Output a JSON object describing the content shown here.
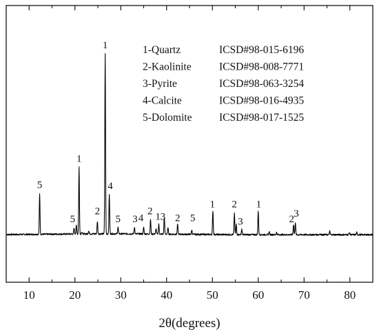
{
  "chart_data": {
    "type": "line",
    "title": "",
    "xlabel": "2θ(degrees)",
    "ylabel": "",
    "xlim": [
      5,
      85
    ],
    "ylim": [
      0,
      170
    ],
    "x_ticks": [
      10,
      20,
      30,
      40,
      50,
      60,
      70,
      80
    ],
    "grid": false,
    "legend_position": "top-right",
    "line_color": "#000000",
    "baseline": 6,
    "series": [
      {
        "peaks": [
          {
            "x": 12.3,
            "y": 42
          },
          {
            "x": 19.8,
            "y": 11
          },
          {
            "x": 20.3,
            "y": 14
          },
          {
            "x": 20.9,
            "y": 65
          },
          {
            "x": 21.5,
            "y": 8
          },
          {
            "x": 23.0,
            "y": 9
          },
          {
            "x": 24.9,
            "y": 17
          },
          {
            "x": 26.6,
            "y": 165
          },
          {
            "x": 27.5,
            "y": 41
          },
          {
            "x": 29.4,
            "y": 12
          },
          {
            "x": 33.0,
            "y": 12
          },
          {
            "x": 35.0,
            "y": 12
          },
          {
            "x": 36.5,
            "y": 19
          },
          {
            "x": 37.7,
            "y": 11
          },
          {
            "x": 38.3,
            "y": 15
          },
          {
            "x": 39.5,
            "y": 21
          },
          {
            "x": 40.3,
            "y": 12
          },
          {
            "x": 42.4,
            "y": 15
          },
          {
            "x": 45.5,
            "y": 10
          },
          {
            "x": 50.1,
            "y": 27
          },
          {
            "x": 54.8,
            "y": 25
          },
          {
            "x": 55.2,
            "y": 15
          },
          {
            "x": 56.4,
            "y": 11
          },
          {
            "x": 60.0,
            "y": 27
          },
          {
            "x": 62.4,
            "y": 9
          },
          {
            "x": 64.0,
            "y": 8
          },
          {
            "x": 67.7,
            "y": 15
          },
          {
            "x": 68.1,
            "y": 17
          },
          {
            "x": 73.5,
            "y": 7
          },
          {
            "x": 75.6,
            "y": 9
          },
          {
            "x": 79.9,
            "y": 8
          },
          {
            "x": 81.5,
            "y": 8
          }
        ]
      }
    ],
    "peak_labels": [
      {
        "text": "5",
        "x": 12.3,
        "y": 47
      },
      {
        "text": "5",
        "x": 19.5,
        "y": 17
      },
      {
        "text": "1",
        "x": 20.9,
        "y": 70
      },
      {
        "text": "2",
        "x": 24.9,
        "y": 24
      },
      {
        "text": "4",
        "x": 27.7,
        "y": 46
      },
      {
        "text": "1",
        "x": 26.6,
        "y": 170
      },
      {
        "text": "5",
        "x": 29.4,
        "y": 17
      },
      {
        "text": "3",
        "x": 33.1,
        "y": 17
      },
      {
        "text": "4",
        "x": 34.4,
        "y": 18
      },
      {
        "text": "2",
        "x": 36.4,
        "y": 24
      },
      {
        "text": "1",
        "x": 38.1,
        "y": 19
      },
      {
        "text": "3",
        "x": 39.2,
        "y": 19
      },
      {
        "text": "2",
        "x": 42.4,
        "y": 18
      },
      {
        "text": "5",
        "x": 45.7,
        "y": 18
      },
      {
        "text": "1",
        "x": 50.0,
        "y": 30
      },
      {
        "text": "2",
        "x": 54.8,
        "y": 30
      },
      {
        "text": "3",
        "x": 56.1,
        "y": 15
      },
      {
        "text": "1",
        "x": 60.1,
        "y": 30
      },
      {
        "text": "2",
        "x": 67.3,
        "y": 17
      },
      {
        "text": "3",
        "x": 68.3,
        "y": 22
      }
    ],
    "legend": [
      {
        "label": "1-Quartz",
        "code": "ICSD#98-015-6196"
      },
      {
        "label": "2-Kaolinite",
        "code": "ICSD#98-008-7771"
      },
      {
        "label": "3-Pyrite",
        "code": "ICSD#98-063-3254"
      },
      {
        "label": "4-Calcite",
        "code": "ICSD#98-016-4935"
      },
      {
        "label": "5-Dolomite",
        "code": "ICSD#98-017-1525"
      }
    ]
  }
}
